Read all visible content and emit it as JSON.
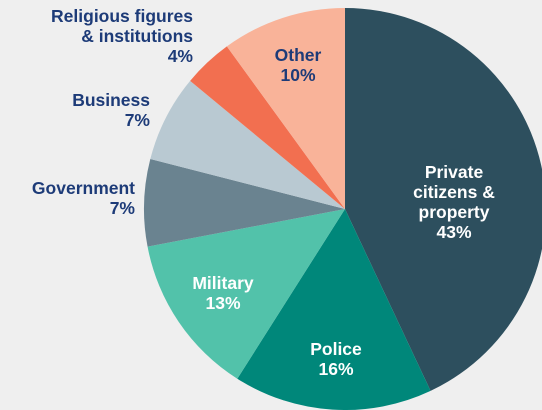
{
  "chart_data": {
    "type": "pie",
    "title": "",
    "slices": [
      {
        "label_lines": [
          "Private",
          "citizens &",
          "property"
        ],
        "pct_label": "43%",
        "value": 43,
        "color": "#2d4f5e",
        "text_color": "#ffffff",
        "label_position": "inside"
      },
      {
        "label_lines": [
          "Police"
        ],
        "pct_label": "16%",
        "value": 16,
        "color": "#00877a",
        "text_color": "#ffffff",
        "label_position": "inside"
      },
      {
        "label_lines": [
          "Military"
        ],
        "pct_label": "13%",
        "value": 13,
        "color": "#52c2aa",
        "text_color": "#ffffff",
        "label_position": "inside"
      },
      {
        "label_lines": [
          "Government"
        ],
        "pct_label": "7%",
        "value": 7,
        "color": "#6a8390",
        "text_color": "#1d3b78",
        "label_position": "outside"
      },
      {
        "label_lines": [
          "Business"
        ],
        "pct_label": "7%",
        "value": 7,
        "color": "#b9c9d2",
        "text_color": "#1d3b78",
        "label_position": "outside"
      },
      {
        "label_lines": [
          "Religious figures",
          "& institutions"
        ],
        "pct_label": "4%",
        "value": 4,
        "color": "#f26f50",
        "text_color": "#1d3b78",
        "label_position": "outside"
      },
      {
        "label_lines": [
          "Other"
        ],
        "pct_label": "10%",
        "value": 10,
        "color": "#f9b399",
        "text_color": "#1d3b78",
        "label_position": "inside"
      }
    ],
    "start": "12 o'clock",
    "direction": "clockwise",
    "legend": "none"
  },
  "colors": {
    "background": "#efefef",
    "outside_label": "#1d3b78"
  }
}
